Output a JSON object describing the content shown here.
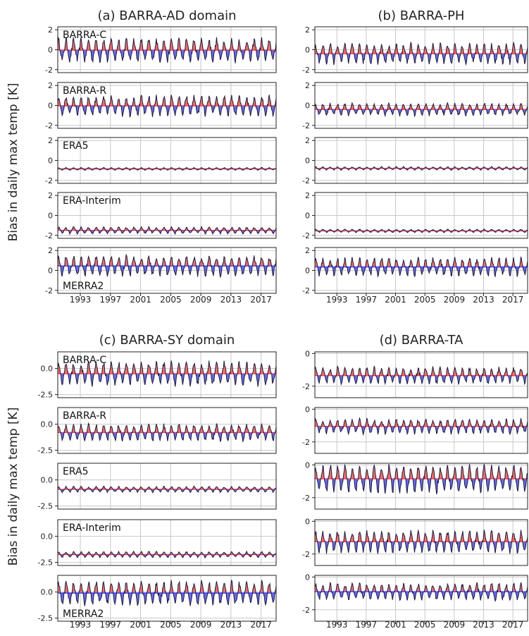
{
  "figure": {
    "shared_ylabel": "Bias in daily max temp [K]",
    "x_tick_labels": [
      "1993",
      "1997",
      "2001",
      "2005",
      "2009",
      "2013",
      "2017"
    ],
    "colors": {
      "positive_fill": "#f07068",
      "negative_fill": "#6a6ae8",
      "line": "#1a1a40",
      "grid": "#c8c8c8"
    }
  },
  "chart_data": [
    {
      "type": "area",
      "title": "(a) BARRA-AD domain",
      "xlim": [
        1990,
        2019
      ],
      "x_ticks": [
        1993,
        1997,
        2001,
        2005,
        2009,
        2013,
        2017
      ],
      "ylim": [
        -2.3,
        2.3
      ],
      "y_ticks": [
        -2,
        0,
        2
      ],
      "grid": true,
      "series": [
        {
          "name": "BARRA-C",
          "mean": -0.05,
          "seasonal_amplitude": 1.05
        },
        {
          "name": "BARRA-R",
          "mean": -0.05,
          "seasonal_amplitude": 0.9
        },
        {
          "name": "ERA5",
          "mean": -0.85,
          "seasonal_amplitude": 0.12
        },
        {
          "name": "ERA-Interim",
          "mean": -1.5,
          "seasonal_amplitude": 0.3
        },
        {
          "name": "MERRA2",
          "mean": 0.45,
          "seasonal_amplitude": 0.9
        }
      ]
    },
    {
      "type": "area",
      "title": "(b) BARRA-PH",
      "xlim": [
        1990,
        2019
      ],
      "x_ticks": [
        1993,
        1997,
        2001,
        2005,
        2009,
        2013,
        2017
      ],
      "ylim": [
        -2.3,
        2.3
      ],
      "y_ticks": [
        -2,
        0,
        2
      ],
      "grid": true,
      "series": [
        {
          "name": "",
          "mean": -0.4,
          "seasonal_amplitude": 0.9
        },
        {
          "name": "",
          "mean": -0.4,
          "seasonal_amplitude": 0.55
        },
        {
          "name": "",
          "mean": -0.8,
          "seasonal_amplitude": 0.15
        },
        {
          "name": "",
          "mean": -1.55,
          "seasonal_amplitude": 0.15
        },
        {
          "name": "",
          "mean": 0.35,
          "seasonal_amplitude": 0.8
        }
      ]
    },
    {
      "type": "area",
      "title": "(c) BARRA-SY domain",
      "xlim": [
        1990,
        2019
      ],
      "x_ticks": [
        1993,
        1997,
        2001,
        2005,
        2009,
        2013,
        2017
      ],
      "ylim": [
        -2.8,
        1.6
      ],
      "y_ticks": [
        -2.5,
        0.0
      ],
      "grid": true,
      "series": [
        {
          "name": "BARRA-C",
          "mean": -0.5,
          "seasonal_amplitude": 1.0
        },
        {
          "name": "BARRA-R",
          "mean": -0.8,
          "seasonal_amplitude": 0.7
        },
        {
          "name": "ERA5",
          "mean": -0.9,
          "seasonal_amplitude": 0.25
        },
        {
          "name": "ERA-Interim",
          "mean": -1.75,
          "seasonal_amplitude": 0.25
        },
        {
          "name": "MERRA2",
          "mean": -0.1,
          "seasonal_amplitude": 1.0
        }
      ]
    },
    {
      "type": "area",
      "title": "(d) BARRA-TA",
      "xlim": [
        1990,
        2019
      ],
      "x_ticks": [
        1993,
        1997,
        2001,
        2005,
        2009,
        2013,
        2017
      ],
      "ylim": [
        -2.7,
        0.1
      ],
      "y_ticks": [
        -2,
        0
      ],
      "grid": true,
      "series": [
        {
          "name": "",
          "mean": -1.35,
          "seasonal_amplitude": 0.45
        },
        {
          "name": "",
          "mean": -1.05,
          "seasonal_amplitude": 0.4
        },
        {
          "name": "",
          "mean": -0.85,
          "seasonal_amplitude": 0.75
        },
        {
          "name": "",
          "mean": -1.25,
          "seasonal_amplitude": 0.6
        },
        {
          "name": "",
          "mean": -0.9,
          "seasonal_amplitude": 0.45
        }
      ]
    }
  ]
}
